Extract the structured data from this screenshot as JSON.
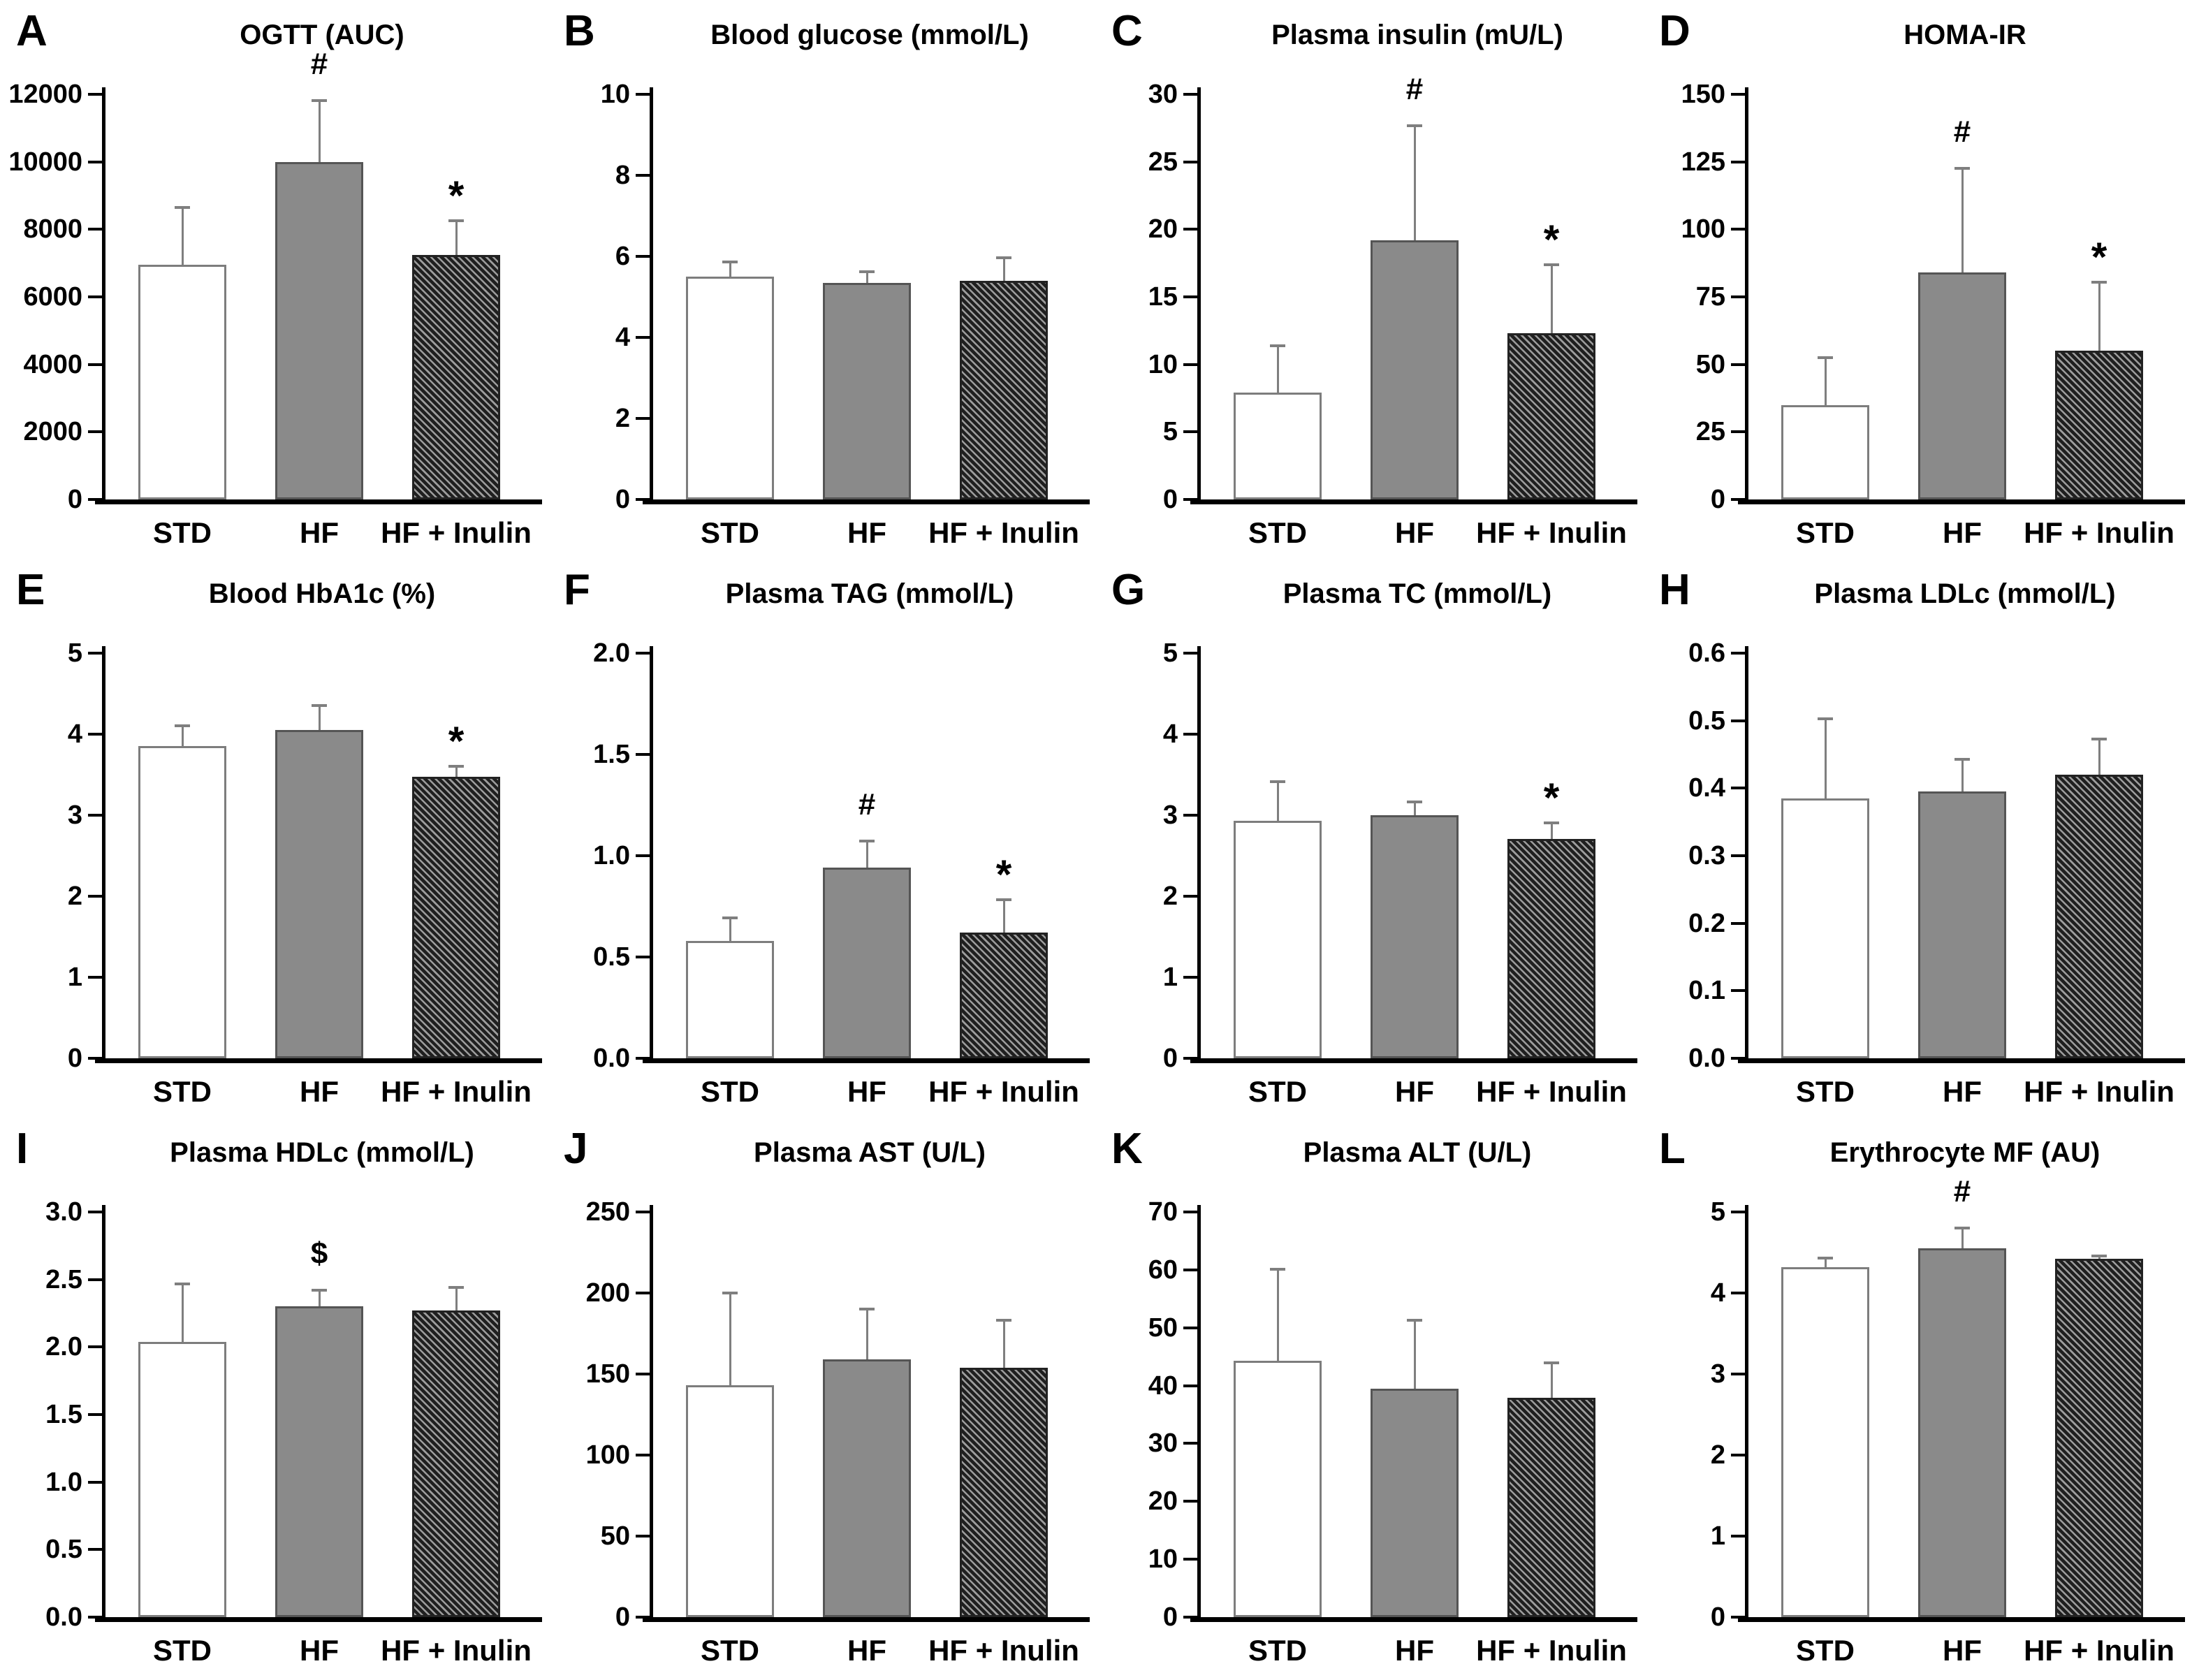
{
  "figure": {
    "groups": [
      "STD",
      "HF",
      "HF + Inulin"
    ],
    "bar_styles": [
      "white",
      "gray",
      "hatch"
    ],
    "colors": {
      "bar_white_fill": "#ffffff",
      "bar_white_border": "#7d7d7d",
      "bar_gray_fill": "#8a8a8a",
      "bar_gray_border": "#555555",
      "hatch_light": "#9c9c9c",
      "hatch_dark": "#1f1f1f",
      "error_bar": "#7f7f7f",
      "axis": "#000000",
      "text": "#000000"
    }
  },
  "chart_data": [
    {
      "letter": "A",
      "title": "OGTT (AUC)",
      "type": "bar",
      "categories": [
        "STD",
        "HF",
        "HF + Inulin"
      ],
      "values": [
        6950,
        10000,
        7250
      ],
      "errors": [
        1750,
        1850,
        1050
      ],
      "markers": [
        "",
        "#",
        "*"
      ],
      "ylim": [
        0,
        12000
      ],
      "ytick": 2000,
      "decimals": 0
    },
    {
      "letter": "B",
      "title": "Blood glucose (mmol/L)",
      "type": "bar",
      "categories": [
        "STD",
        "HF",
        "HF + Inulin"
      ],
      "values": [
        5.5,
        5.35,
        5.4
      ],
      "errors": [
        0.4,
        0.3,
        0.6
      ],
      "markers": [
        "",
        "",
        ""
      ],
      "ylim": [
        0,
        10
      ],
      "ytick": 2,
      "decimals": 0
    },
    {
      "letter": "C",
      "title": "Plasma insulin (mU/L)",
      "type": "bar",
      "categories": [
        "STD",
        "HF",
        "HF + Inulin"
      ],
      "values": [
        7.9,
        19.2,
        12.3
      ],
      "errors": [
        3.6,
        8.6,
        5.2
      ],
      "markers": [
        "",
        "#",
        "*"
      ],
      "ylim": [
        0,
        30
      ],
      "ytick": 5,
      "decimals": 0
    },
    {
      "letter": "D",
      "title": "HOMA-IR",
      "type": "bar",
      "categories": [
        "STD",
        "HF",
        "HF + Inulin"
      ],
      "values": [
        35,
        84,
        55
      ],
      "errors": [
        18,
        39,
        26
      ],
      "markers": [
        "",
        "#",
        "*"
      ],
      "ylim": [
        0,
        150
      ],
      "ytick": 25,
      "decimals": 0
    },
    {
      "letter": "E",
      "title": "Blood HbA1c (%)",
      "type": "bar",
      "categories": [
        "STD",
        "HF",
        "HF + Inulin"
      ],
      "values": [
        3.85,
        4.05,
        3.47
      ],
      "errors": [
        0.27,
        0.32,
        0.15
      ],
      "markers": [
        "",
        "",
        "*"
      ],
      "ylim": [
        0,
        5
      ],
      "ytick": 1,
      "decimals": 0
    },
    {
      "letter": "F",
      "title": "Plasma TAG (mmol/L)",
      "type": "bar",
      "categories": [
        "STD",
        "HF",
        "HF + Inulin"
      ],
      "values": [
        0.58,
        0.94,
        0.62
      ],
      "errors": [
        0.12,
        0.14,
        0.17
      ],
      "markers": [
        "",
        "#",
        "*"
      ],
      "ylim": [
        0,
        2
      ],
      "ytick": 0.5,
      "decimals": 1
    },
    {
      "letter": "G",
      "title": "Plasma TC (mmol/L)",
      "type": "bar",
      "categories": [
        "STD",
        "HF",
        "HF + Inulin"
      ],
      "values": [
        2.93,
        3.0,
        2.71
      ],
      "errors": [
        0.5,
        0.18,
        0.21
      ],
      "markers": [
        "",
        "",
        "*"
      ],
      "ylim": [
        0,
        5
      ],
      "ytick": 1,
      "decimals": 0
    },
    {
      "letter": "H",
      "title": "Plasma LDLc (mmol/L)",
      "type": "bar",
      "categories": [
        "STD",
        "HF",
        "HF + Inulin"
      ],
      "values": [
        0.385,
        0.395,
        0.42
      ],
      "errors": [
        0.12,
        0.05,
        0.055
      ],
      "markers": [
        "",
        "",
        ""
      ],
      "ylim": [
        0,
        0.6
      ],
      "ytick": 0.1,
      "decimals": 1
    },
    {
      "letter": "I",
      "title": "Plasma HDLc (mmol/L)",
      "type": "bar",
      "categories": [
        "STD",
        "HF",
        "HF + Inulin"
      ],
      "values": [
        2.04,
        2.3,
        2.27
      ],
      "errors": [
        0.44,
        0.13,
        0.18
      ],
      "markers": [
        "",
        "$",
        ""
      ],
      "ylim": [
        0,
        3
      ],
      "ytick": 0.5,
      "decimals": 1
    },
    {
      "letter": "J",
      "title": "Plasma AST (U/L)",
      "type": "bar",
      "categories": [
        "STD",
        "HF",
        "HF + Inulin"
      ],
      "values": [
        143,
        159,
        154
      ],
      "errors": [
        58,
        32,
        30
      ],
      "markers": [
        "",
        "",
        ""
      ],
      "ylim": [
        0,
        250
      ],
      "ytick": 50,
      "decimals": 0
    },
    {
      "letter": "K",
      "title": "Plasma ALT (U/L)",
      "type": "bar",
      "categories": [
        "STD",
        "HF",
        "HF + Inulin"
      ],
      "values": [
        44.3,
        39.5,
        37.9
      ],
      "errors": [
        16,
        12,
        6.3
      ],
      "markers": [
        "",
        "",
        ""
      ],
      "ylim": [
        0,
        70
      ],
      "ytick": 10,
      "decimals": 0
    },
    {
      "letter": "L",
      "title": "Erythrocyte MF (AU)",
      "type": "bar",
      "categories": [
        "STD",
        "HF",
        "HF + Inulin"
      ],
      "values": [
        4.32,
        4.55,
        4.42
      ],
      "errors": [
        0.13,
        0.27,
        0.05
      ],
      "markers": [
        "",
        "#",
        ""
      ],
      "ylim": [
        0,
        5
      ],
      "ytick": 1,
      "decimals": 0
    }
  ]
}
